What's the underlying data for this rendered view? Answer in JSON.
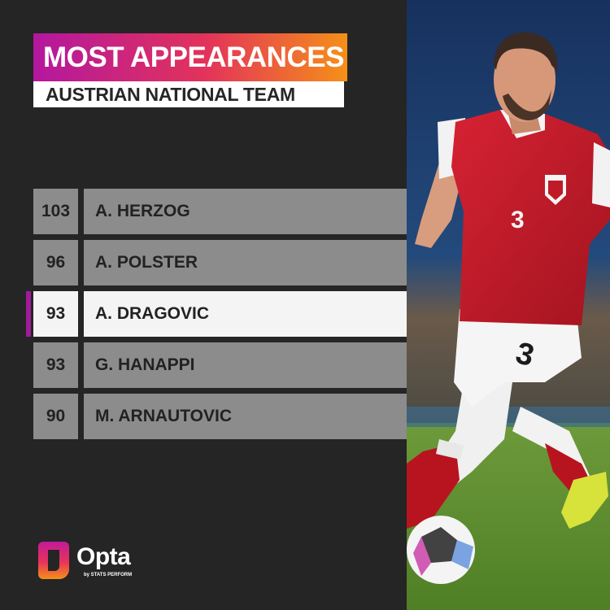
{
  "header": {
    "title": "MOST APPEARANCES",
    "subtitle": "AUSTRIAN NATIONAL TEAM"
  },
  "ranking": [
    {
      "value": "103",
      "name": "A. HERZOG",
      "highlighted": false
    },
    {
      "value": "96",
      "name": "A. POLSTER",
      "highlighted": false
    },
    {
      "value": "93",
      "name": "A. DRAGOVIC",
      "highlighted": true
    },
    {
      "value": "93",
      "name": "G. HANAPPI",
      "highlighted": false
    },
    {
      "value": "90",
      "name": "M. ARNAUTOVIC",
      "highlighted": false
    }
  ],
  "brand": {
    "name": "Opta",
    "tagline": "by STATS PERFORM",
    "icon": "opta-logo-icon"
  },
  "photo": {
    "shirt_number": "3",
    "icon": "footballer-photo"
  },
  "colors": {
    "background": "#252525",
    "row_bg": "#8c8c8c",
    "highlight_bg": "#f4f4f4",
    "highlight_marker": "#a01a9a",
    "gradient_start": "#b3179f",
    "gradient_end": "#f59018",
    "kit_red": "#c01a28"
  }
}
